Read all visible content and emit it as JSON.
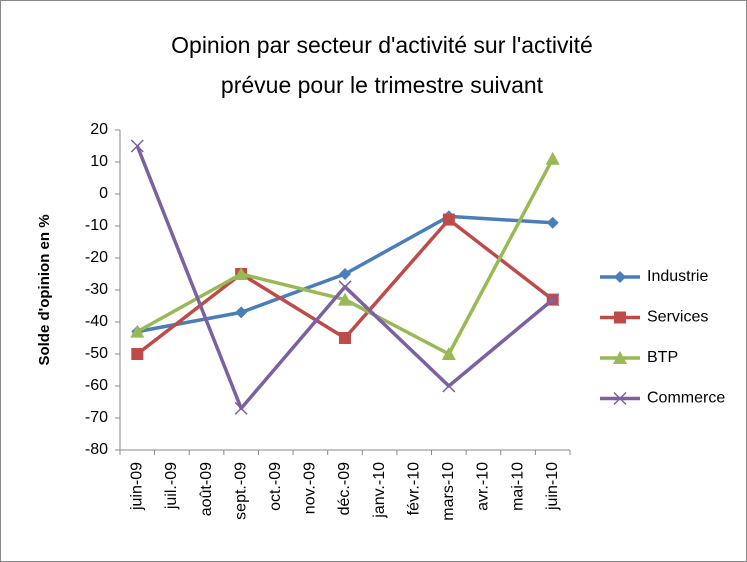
{
  "chart_data": {
    "type": "line",
    "title": [
      "Opinion par secteur d'activité sur l'activité",
      "prévue pour le trimestre suivant"
    ],
    "ylabel": "Solde d'opinion en %",
    "categories": [
      "juin-09",
      "juil.-09",
      "août-09",
      "sept.-09",
      "oct.-09",
      "nov.-09",
      "déc.-09",
      "janv.-10",
      "févr.-10",
      "mars-10",
      "avr.-10",
      "mai-10",
      "juin-10"
    ],
    "series": [
      {
        "name": "Industrie",
        "color": "#4a7ebb",
        "marker": "diamond",
        "values": [
          -43,
          null,
          null,
          -37,
          null,
          null,
          -25,
          null,
          null,
          -7,
          null,
          null,
          -9
        ]
      },
      {
        "name": "Services",
        "color": "#be4b48",
        "marker": "square",
        "values": [
          -50,
          null,
          null,
          -25,
          null,
          null,
          -45,
          null,
          null,
          -8,
          null,
          null,
          -33
        ]
      },
      {
        "name": "BTP",
        "color": "#98b954",
        "marker": "triangle",
        "values": [
          -43,
          null,
          null,
          -25,
          null,
          null,
          -33,
          null,
          null,
          -50,
          null,
          null,
          11
        ]
      },
      {
        "name": "Commerce",
        "color": "#7d60a0",
        "marker": "x",
        "values": [
          15,
          null,
          null,
          -67,
          null,
          null,
          -29,
          null,
          null,
          -60,
          null,
          null,
          -33
        ]
      }
    ],
    "span_gaps": true,
    "ylim": [
      -80,
      20
    ],
    "yticks": [
      -80,
      -70,
      -60,
      -50,
      -40,
      -30,
      -20,
      -10,
      0,
      10,
      20
    ],
    "grid": false,
    "legend": "right"
  }
}
